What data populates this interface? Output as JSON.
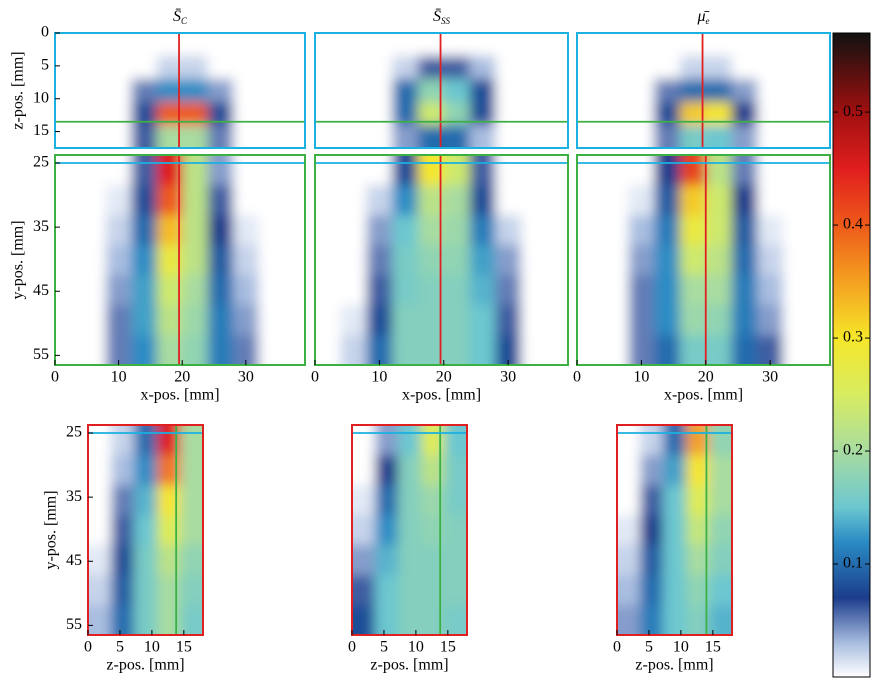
{
  "chart_data": [
    {
      "type": "heatmap",
      "title": "S̄",
      "title_sub": "C",
      "ylabel": "z-pos. [mm]",
      "xlim": [
        0,
        39.3
      ],
      "ylim": [
        0,
        17.5
      ],
      "yticks": [
        0,
        5,
        10,
        15
      ],
      "frame_color": "#1ab0e0",
      "x": [
        2,
        6,
        10,
        14,
        18,
        22,
        26,
        30,
        34,
        38
      ],
      "y": [
        1.75,
        5.25,
        8.75,
        12.25,
        15.75
      ],
      "z": [
        [
          0,
          0,
          0,
          0,
          0,
          0,
          0,
          0,
          0,
          0
        ],
        [
          0,
          0,
          0,
          0,
          0.02,
          0.02,
          0,
          0,
          0,
          0
        ],
        [
          0,
          0,
          0,
          0.05,
          0.12,
          0.12,
          0.04,
          0,
          0,
          0
        ],
        [
          0,
          0,
          0,
          0.08,
          0.4,
          0.4,
          0.08,
          0,
          0,
          0
        ],
        [
          0,
          0,
          0,
          0.06,
          0.2,
          0.2,
          0.05,
          0,
          0,
          0
        ]
      ],
      "vlines": [
        {
          "value": 19.5,
          "color": "#e02020"
        }
      ],
      "hlines": [
        {
          "value": 13.5,
          "color": "#3cb043"
        }
      ]
    },
    {
      "type": "heatmap",
      "title": "S̄",
      "title_sub": "SS",
      "xlim": [
        0,
        39.3
      ],
      "ylim": [
        0,
        17.5
      ],
      "frame_color": "#1ab0e0",
      "x": [
        2,
        6,
        10,
        14,
        18,
        22,
        26,
        30,
        34,
        38
      ],
      "y": [
        1.75,
        5.25,
        8.75,
        12.25,
        15.75
      ],
      "z": [
        [
          0,
          0,
          0,
          0,
          0,
          0,
          0,
          0,
          0,
          0
        ],
        [
          0,
          0,
          0,
          0.02,
          0.06,
          0.06,
          0.03,
          0,
          0,
          0
        ],
        [
          0,
          0,
          0,
          0.1,
          0.18,
          0.15,
          0.08,
          0,
          0,
          0
        ],
        [
          0,
          0,
          0,
          0.1,
          0.24,
          0.18,
          0.08,
          0,
          0,
          0
        ],
        [
          0,
          0,
          0,
          0.04,
          0.1,
          0.1,
          0.03,
          0,
          0,
          0
        ]
      ],
      "vlines": [
        {
          "value": 19.5,
          "color": "#e02020"
        }
      ],
      "hlines": [
        {
          "value": 13.5,
          "color": "#3cb043"
        }
      ]
    },
    {
      "type": "heatmap",
      "title": "μ̄",
      "title_sub": "e",
      "xlim": [
        0,
        39.3
      ],
      "ylim": [
        0,
        17.5
      ],
      "frame_color": "#1ab0e0",
      "x": [
        2,
        6,
        10,
        14,
        18,
        22,
        26,
        30,
        34,
        38
      ],
      "y": [
        1.75,
        5.25,
        8.75,
        12.25,
        15.75
      ],
      "z": [
        [
          0,
          0,
          0,
          0,
          0,
          0,
          0,
          0,
          0,
          0
        ],
        [
          0,
          0,
          0,
          0,
          0.02,
          0.02,
          0,
          0,
          0,
          0
        ],
        [
          0,
          0,
          0,
          0.05,
          0.1,
          0.1,
          0.04,
          0,
          0,
          0
        ],
        [
          0,
          0,
          0,
          0.08,
          0.32,
          0.3,
          0.07,
          0,
          0,
          0
        ],
        [
          0,
          0,
          0,
          0.05,
          0.16,
          0.15,
          0.04,
          0,
          0,
          0
        ]
      ],
      "vlines": [
        {
          "value": 19.5,
          "color": "#e02020"
        }
      ],
      "hlines": [
        {
          "value": 13.5,
          "color": "#3cb043"
        }
      ]
    },
    {
      "type": "heatmap",
      "xlabel": "x-pos. [mm]",
      "ylabel": "y-pos. [mm]",
      "xlim": [
        0,
        39.3
      ],
      "ylim": [
        23.75,
        56.5
      ],
      "xticks": [
        0,
        10,
        20,
        30
      ],
      "yticks": [
        25,
        35,
        45,
        55
      ],
      "frame_color": "#3cb043",
      "x": [
        2,
        6,
        10,
        14,
        18,
        22,
        26,
        30,
        34,
        38
      ],
      "y": [
        26.1,
        30.8,
        35.5,
        40.1,
        44.8,
        49.5,
        54.2
      ],
      "z": [
        [
          0,
          0,
          0,
          0.06,
          0.45,
          0.22,
          0.04,
          0,
          0,
          0
        ],
        [
          0,
          0,
          0.01,
          0.08,
          0.4,
          0.22,
          0.06,
          0,
          0,
          0
        ],
        [
          0,
          0,
          0.02,
          0.1,
          0.33,
          0.22,
          0.07,
          0.01,
          0,
          0
        ],
        [
          0,
          0,
          0.03,
          0.12,
          0.28,
          0.22,
          0.09,
          0.02,
          0,
          0
        ],
        [
          0,
          0,
          0.04,
          0.13,
          0.24,
          0.2,
          0.1,
          0.03,
          0,
          0
        ],
        [
          0,
          0,
          0.05,
          0.13,
          0.22,
          0.19,
          0.11,
          0.04,
          0,
          0
        ],
        [
          0,
          0,
          0.05,
          0.12,
          0.2,
          0.18,
          0.11,
          0.05,
          0,
          0
        ]
      ],
      "vlines": [
        {
          "value": 19.5,
          "color": "#e02020"
        }
      ],
      "hlines": [
        {
          "value": 25,
          "color": "#1ab0e0"
        }
      ]
    },
    {
      "type": "heatmap",
      "xlabel": "x-pos. [mm]",
      "xlim": [
        0,
        39.3
      ],
      "ylim": [
        23.75,
        56.5
      ],
      "xticks": [
        0,
        10,
        20,
        30
      ],
      "frame_color": "#3cb043",
      "x": [
        2,
        6,
        10,
        14,
        18,
        22,
        26,
        30,
        34,
        38
      ],
      "y": [
        26.1,
        30.8,
        35.5,
        40.1,
        44.8,
        49.5,
        54.2
      ],
      "z": [
        [
          0,
          0,
          0,
          0.08,
          0.3,
          0.24,
          0.06,
          0,
          0,
          0
        ],
        [
          0,
          0,
          0.02,
          0.12,
          0.22,
          0.2,
          0.08,
          0,
          0,
          0
        ],
        [
          0,
          0,
          0.04,
          0.15,
          0.2,
          0.19,
          0.11,
          0.02,
          0,
          0
        ],
        [
          0,
          0,
          0.05,
          0.16,
          0.18,
          0.18,
          0.13,
          0.04,
          0,
          0
        ],
        [
          0,
          0,
          0.06,
          0.16,
          0.17,
          0.17,
          0.14,
          0.05,
          0,
          0
        ],
        [
          0,
          0.01,
          0.08,
          0.17,
          0.17,
          0.17,
          0.15,
          0.06,
          0,
          0
        ],
        [
          0,
          0.02,
          0.1,
          0.17,
          0.17,
          0.17,
          0.15,
          0.08,
          0,
          0
        ]
      ],
      "vlines": [
        {
          "value": 19.5,
          "color": "#e02020"
        }
      ],
      "hlines": [
        {
          "value": 25,
          "color": "#1ab0e0"
        }
      ]
    },
    {
      "type": "heatmap",
      "xlabel": "x-pos. [mm]",
      "xlim": [
        0,
        39.3
      ],
      "ylim": [
        23.75,
        56.5
      ],
      "xticks": [
        0,
        10,
        20,
        30
      ],
      "frame_color": "#3cb043",
      "x": [
        2,
        6,
        10,
        14,
        18,
        22,
        26,
        30,
        34,
        38
      ],
      "y": [
        26.1,
        30.8,
        35.5,
        40.1,
        44.8,
        49.5,
        54.2
      ],
      "z": [
        [
          0,
          0,
          0,
          0.07,
          0.42,
          0.22,
          0.05,
          0,
          0,
          0
        ],
        [
          0,
          0,
          0.01,
          0.09,
          0.32,
          0.24,
          0.07,
          0,
          0,
          0
        ],
        [
          0,
          0,
          0.03,
          0.11,
          0.28,
          0.24,
          0.09,
          0.01,
          0,
          0
        ],
        [
          0,
          0,
          0.04,
          0.12,
          0.24,
          0.22,
          0.1,
          0.02,
          0,
          0
        ],
        [
          0,
          0,
          0.05,
          0.12,
          0.2,
          0.2,
          0.11,
          0.03,
          0,
          0
        ],
        [
          0,
          0,
          0.05,
          0.12,
          0.19,
          0.18,
          0.11,
          0.04,
          0,
          0
        ],
        [
          0,
          0,
          0.05,
          0.1,
          0.16,
          0.16,
          0.1,
          0.06,
          0,
          0
        ]
      ],
      "vlines": [
        {
          "value": 20,
          "color": "#e02020"
        }
      ],
      "hlines": [
        {
          "value": 25,
          "color": "#1ab0e0"
        }
      ]
    },
    {
      "type": "heatmap",
      "xlabel": "z-pos. [mm]",
      "ylabel": "y-pos. [mm]",
      "xlim": [
        0,
        18
      ],
      "ylim": [
        23.75,
        56.5
      ],
      "xticks": [
        0,
        5,
        10,
        15
      ],
      "yticks": [
        25,
        35,
        45,
        55
      ],
      "frame_color": "#e02020",
      "x": [
        1.8,
        5.4,
        9,
        12.6,
        16.2
      ],
      "y": [
        26.1,
        30.8,
        35.5,
        40.1,
        44.8,
        49.5,
        54.2
      ],
      "z": [
        [
          0,
          0.02,
          0.1,
          0.45,
          0.2
        ],
        [
          0,
          0.03,
          0.12,
          0.38,
          0.2
        ],
        [
          0,
          0.05,
          0.14,
          0.3,
          0.2
        ],
        [
          0,
          0.06,
          0.15,
          0.26,
          0.2
        ],
        [
          0.01,
          0.08,
          0.16,
          0.22,
          0.18
        ],
        [
          0.02,
          0.09,
          0.16,
          0.2,
          0.17
        ],
        [
          0.03,
          0.1,
          0.16,
          0.2,
          0.16
        ]
      ],
      "vlines": [
        {
          "value": 13.8,
          "color": "#3cb043"
        }
      ],
      "hlines": [
        {
          "value": 25,
          "color": "#1ab0e0"
        }
      ]
    },
    {
      "type": "heatmap",
      "xlabel": "z-pos. [mm]",
      "xlim": [
        0,
        18
      ],
      "ylim": [
        23.75,
        56.5
      ],
      "xticks": [
        0,
        5,
        10,
        15
      ],
      "frame_color": "#e02020",
      "x": [
        1.8,
        5.4,
        9,
        12.6,
        16.2
      ],
      "y": [
        26.1,
        30.8,
        35.5,
        40.1,
        44.8,
        49.5,
        54.2
      ],
      "z": [
        [
          0,
          0.04,
          0.15,
          0.26,
          0.15
        ],
        [
          0,
          0.07,
          0.17,
          0.22,
          0.16
        ],
        [
          0.01,
          0.1,
          0.17,
          0.19,
          0.16
        ],
        [
          0.02,
          0.12,
          0.17,
          0.18,
          0.17
        ],
        [
          0.04,
          0.14,
          0.17,
          0.17,
          0.17
        ],
        [
          0.06,
          0.15,
          0.17,
          0.17,
          0.17
        ],
        [
          0.08,
          0.15,
          0.17,
          0.17,
          0.16
        ]
      ],
      "vlines": [
        {
          "value": 13.8,
          "color": "#3cb043"
        }
      ],
      "hlines": [
        {
          "value": 25,
          "color": "#1ab0e0"
        }
      ]
    },
    {
      "type": "heatmap",
      "xlabel": "z-pos. [mm]",
      "xlim": [
        0,
        18
      ],
      "ylim": [
        23.75,
        56.5
      ],
      "xticks": [
        0,
        5,
        10,
        15
      ],
      "frame_color": "#e02020",
      "x": [
        1.8,
        5.4,
        9,
        12.6,
        16.2
      ],
      "y": [
        26.1,
        30.8,
        35.5,
        40.1,
        44.8,
        49.5,
        54.2
      ],
      "z": [
        [
          0,
          0.02,
          0.1,
          0.35,
          0.18
        ],
        [
          0,
          0.04,
          0.13,
          0.3,
          0.2
        ],
        [
          0,
          0.06,
          0.15,
          0.26,
          0.2
        ],
        [
          0.01,
          0.07,
          0.15,
          0.23,
          0.18
        ],
        [
          0.02,
          0.09,
          0.15,
          0.2,
          0.17
        ],
        [
          0.03,
          0.1,
          0.15,
          0.18,
          0.15
        ],
        [
          0.04,
          0.11,
          0.15,
          0.17,
          0.14
        ]
      ],
      "vlines": [
        {
          "value": 14,
          "color": "#3cb043"
        }
      ],
      "hlines": [
        {
          "value": 25,
          "color": "#1ab0e0"
        }
      ]
    }
  ],
  "colorbar": {
    "clim": [
      0,
      0.57
    ],
    "ticks": [
      0.1,
      0.2,
      0.3,
      0.4,
      0.5
    ],
    "colormap": [
      {
        "at": 0,
        "color": "#ffffff"
      },
      {
        "at": 0.03,
        "color": "#a9bde0"
      },
      {
        "at": 0.07,
        "color": "#1c3d8c"
      },
      {
        "at": 0.12,
        "color": "#2a8cc4"
      },
      {
        "at": 0.15,
        "color": "#6cc7d0"
      },
      {
        "at": 0.2,
        "color": "#a8dca0"
      },
      {
        "at": 0.25,
        "color": "#d8ec60"
      },
      {
        "at": 0.3,
        "color": "#f5e62a"
      },
      {
        "at": 0.35,
        "color": "#f5a020"
      },
      {
        "at": 0.4,
        "color": "#ee5a1a"
      },
      {
        "at": 0.45,
        "color": "#e01e1e"
      },
      {
        "at": 0.5,
        "color": "#a01010"
      },
      {
        "at": 0.57,
        "color": "#111111"
      }
    ]
  }
}
